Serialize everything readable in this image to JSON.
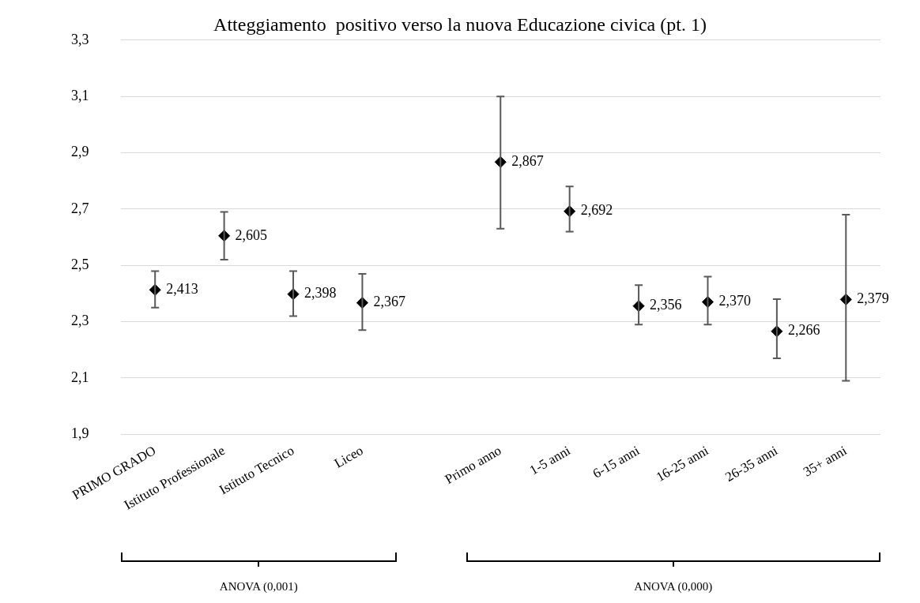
{
  "chart_data": {
    "type": "scatter",
    "title": "Atteggiamento  positivo verso la nuova Educazione civica (pt. 1)",
    "categories": [
      "PRIMO GRADO",
      "Istituto Professionale",
      "Istituto Tecnico",
      "Liceo",
      null,
      "Primo anno",
      "1-5 anni",
      "6-15 anni",
      "16-25 anni",
      "26-35 anni",
      "35+ anni"
    ],
    "values": [
      2.413,
      2.605,
      2.398,
      2.367,
      null,
      2.867,
      2.692,
      2.356,
      2.37,
      2.266,
      2.379
    ],
    "value_labels": [
      "2,413",
      "2,605",
      "2,398",
      "2,367",
      null,
      "2,867",
      "2,692",
      "2,356",
      "2,370",
      "2,266",
      "2,379"
    ],
    "errors": [
      [
        2.35,
        2.48
      ],
      [
        2.52,
        2.69
      ],
      [
        2.32,
        2.48
      ],
      [
        2.27,
        2.47
      ],
      null,
      [
        2.63,
        3.1
      ],
      [
        2.62,
        2.78
      ],
      [
        2.29,
        2.43
      ],
      [
        2.29,
        2.46
      ],
      [
        2.17,
        2.38
      ],
      [
        2.09,
        2.68
      ]
    ],
    "color": "#000000",
    "marker": "diamond",
    "grid": "y",
    "ylim": [
      1.9,
      3.3
    ],
    "yticks": [
      {
        "value": 1.9,
        "label": "1,9"
      },
      {
        "value": 2.1,
        "label": "2,1"
      },
      {
        "value": 2.3,
        "label": "2,3"
      },
      {
        "value": 2.5,
        "label": "2,5"
      },
      {
        "value": 2.7,
        "label": "2,7"
      },
      {
        "value": 2.9,
        "label": "2,9"
      },
      {
        "value": 3.1,
        "label": "3,1"
      },
      {
        "value": 3.3,
        "label": "3,3"
      }
    ],
    "annotations": [
      "ANOVA (0,001)",
      "ANOVA (0,000)"
    ]
  }
}
